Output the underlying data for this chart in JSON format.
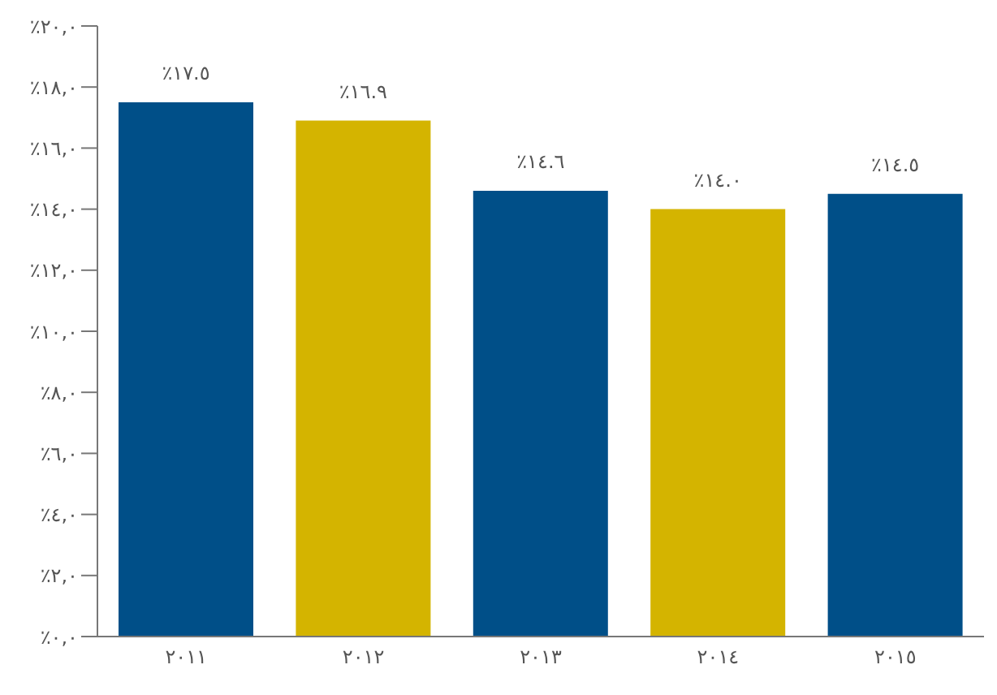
{
  "chart_data": {
    "type": "bar",
    "categories": [
      "٢٠١١",
      "٢٠١٢",
      "٢٠١٣",
      "٢٠١٤",
      "٢٠١٥"
    ],
    "values": [
      17.5,
      16.9,
      14.6,
      14.0,
      14.5
    ],
    "colors": [
      "#004f88",
      "#d4b400",
      "#004f88",
      "#d4b400",
      "#004f88"
    ],
    "value_labels": [
      "٪١٧.٥",
      "٪١٦.٩",
      "٪١٤.٦",
      "٪١٤.٠",
      "٪١٤.٥"
    ],
    "ylim": [
      0,
      20
    ],
    "yticks": [
      {
        "value": 0,
        "label": "٪٠,٠"
      },
      {
        "value": 2,
        "label": "٪٢,٠"
      },
      {
        "value": 4,
        "label": "٪٤,٠"
      },
      {
        "value": 6,
        "label": "٪٦,٠"
      },
      {
        "value": 8,
        "label": "٪٨,٠"
      },
      {
        "value": 10,
        "label": "٪١٠,٠"
      },
      {
        "value": 12,
        "label": "٪١٢,٠"
      },
      {
        "value": 14,
        "label": "٪١٤,٠"
      },
      {
        "value": 16,
        "label": "٪١٦,٠"
      },
      {
        "value": 18,
        "label": "٪١٨,٠"
      },
      {
        "value": 20,
        "label": "٪٢٠,٠"
      }
    ],
    "grid": false,
    "legend": false
  }
}
